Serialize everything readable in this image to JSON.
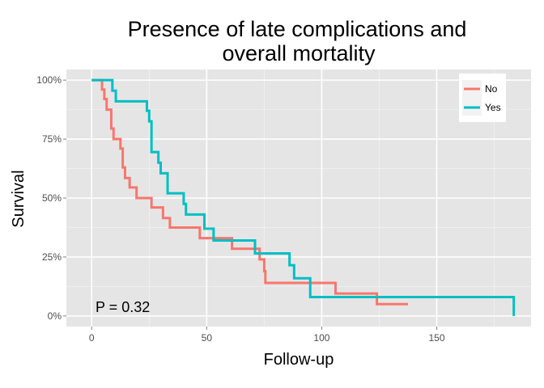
{
  "chart_data": {
    "type": "line",
    "title_lines": [
      "Presence of late complications and",
      "overall mortality"
    ],
    "xlabel": "Follow-up",
    "ylabel": "Survival",
    "xlim": [
      -11,
      191
    ],
    "ylim": [
      -0.045,
      1.045
    ],
    "x_ticks": [
      {
        "value": 0,
        "label": "0"
      },
      {
        "value": 50,
        "label": "50"
      },
      {
        "value": 100,
        "label": "100"
      },
      {
        "value": 150,
        "label": "150"
      }
    ],
    "y_ticks": [
      {
        "value": 0,
        "label": "0%"
      },
      {
        "value": 0.25,
        "label": "25%"
      },
      {
        "value": 0.5,
        "label": "50%"
      },
      {
        "value": 0.75,
        "label": "75%"
      },
      {
        "value": 1,
        "label": "100%"
      }
    ],
    "grid": true,
    "legend": {
      "position": "top-right"
    },
    "annotation": "P = 0.32",
    "series": [
      {
        "name": "No",
        "color": "#F8766D",
        "steps": [
          [
            0,
            1.0
          ],
          [
            4.5,
            0.96
          ],
          [
            5.5,
            0.92
          ],
          [
            6.5,
            0.875
          ],
          [
            8.5,
            0.795
          ],
          [
            9.5,
            0.75
          ],
          [
            12.5,
            0.71
          ],
          [
            13.5,
            0.63
          ],
          [
            14.5,
            0.585
          ],
          [
            16.5,
            0.545
          ],
          [
            19.5,
            0.5
          ],
          [
            26,
            0.46
          ],
          [
            31,
            0.415
          ],
          [
            34,
            0.375
          ],
          [
            47,
            0.33
          ],
          [
            61,
            0.285
          ],
          [
            73,
            0.24
          ],
          [
            75,
            0.19
          ],
          [
            75.5,
            0.14
          ],
          [
            106,
            0.095
          ],
          [
            124,
            0.05
          ],
          [
            137.5,
            0.05
          ]
        ]
      },
      {
        "name": "Yes",
        "color": "#00BFC4",
        "steps": [
          [
            0,
            1.0
          ],
          [
            9,
            0.955
          ],
          [
            10.5,
            0.91
          ],
          [
            24,
            0.87
          ],
          [
            25,
            0.825
          ],
          [
            26,
            0.695
          ],
          [
            29,
            0.65
          ],
          [
            30,
            0.605
          ],
          [
            33,
            0.52
          ],
          [
            40,
            0.475
          ],
          [
            41,
            0.43
          ],
          [
            49,
            0.37
          ],
          [
            53,
            0.32
          ],
          [
            71,
            0.265
          ],
          [
            86,
            0.215
          ],
          [
            88,
            0.16
          ],
          [
            95,
            0.08
          ],
          [
            183.5,
            0.0
          ]
        ]
      }
    ]
  }
}
